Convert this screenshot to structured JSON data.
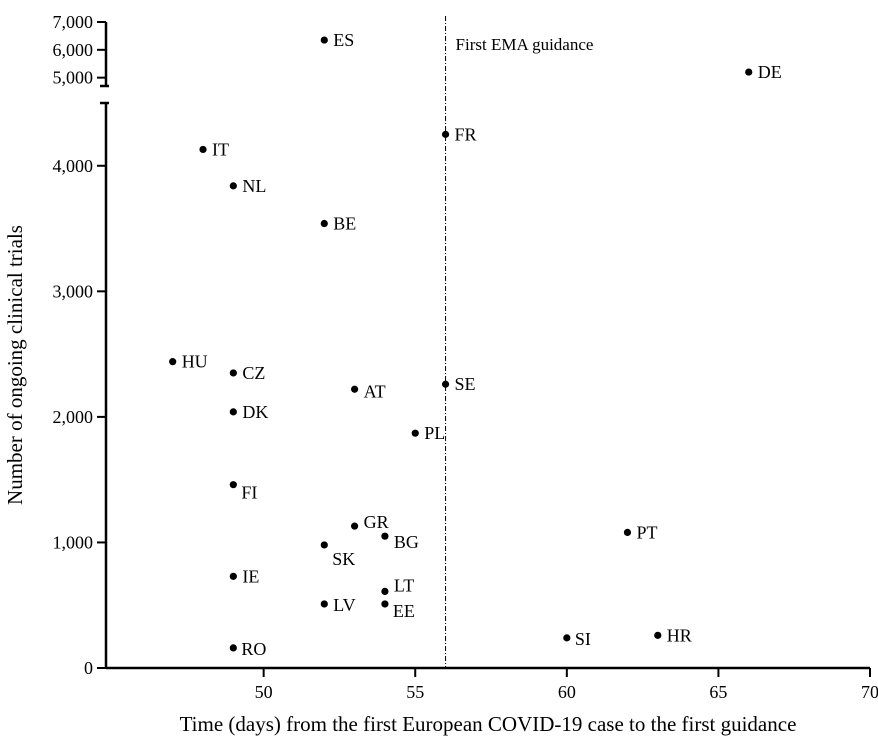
{
  "chart_data": {
    "type": "scatter",
    "xlabel": "Time (days) from the first European COVID-19 case to the first guidance",
    "ylabel": "Number of ongoing clinical trials",
    "xlim": [
      44.8,
      70
    ],
    "x_ticks": [
      50,
      55,
      60,
      65,
      70
    ],
    "x_tick_labels": [
      "50",
      "55",
      "60",
      "65",
      "70"
    ],
    "y_scale": "broken",
    "y_lower_range": [
      0,
      4500
    ],
    "y_lower_ticks": [
      0,
      1000,
      2000,
      3000,
      4000
    ],
    "y_lower_tick_labels": [
      "0",
      "1,000",
      "2,000",
      "3,000",
      "4,000"
    ],
    "y_upper_range": [
      4700,
      7000
    ],
    "y_upper_ticks": [
      5000,
      6000,
      7000
    ],
    "y_upper_tick_labels": [
      "5,000",
      "6,000",
      "7,000"
    ],
    "reference_line": {
      "x": 56,
      "label": "First EMA guidance"
    },
    "points": [
      {
        "label": "ES",
        "x": 52,
        "y": 6350
      },
      {
        "label": "DE",
        "x": 66,
        "y": 5200
      },
      {
        "label": "FR",
        "x": 56,
        "y": 4250
      },
      {
        "label": "IT",
        "x": 48,
        "y": 4130
      },
      {
        "label": "NL",
        "x": 49,
        "y": 3840
      },
      {
        "label": "BE",
        "x": 52,
        "y": 3540
      },
      {
        "label": "HU",
        "x": 47,
        "y": 2440
      },
      {
        "label": "CZ",
        "x": 49,
        "y": 2350
      },
      {
        "label": "SE",
        "x": 56,
        "y": 2260
      },
      {
        "label": "AT",
        "x": 53,
        "y": 2220
      },
      {
        "label": "DK",
        "x": 49,
        "y": 2040
      },
      {
        "label": "PL",
        "x": 55,
        "y": 1870
      },
      {
        "label": "FI",
        "x": 49,
        "y": 1460
      },
      {
        "label": "GR",
        "x": 53,
        "y": 1130
      },
      {
        "label": "PT",
        "x": 62,
        "y": 1080
      },
      {
        "label": "BG",
        "x": 54,
        "y": 1050
      },
      {
        "label": "SK",
        "x": 52,
        "y": 980
      },
      {
        "label": "IE",
        "x": 49,
        "y": 730
      },
      {
        "label": "LT",
        "x": 54,
        "y": 610
      },
      {
        "label": "LV",
        "x": 52,
        "y": 510
      },
      {
        "label": "EE",
        "x": 54,
        "y": 510
      },
      {
        "label": "HR",
        "x": 63,
        "y": 260
      },
      {
        "label": "SI",
        "x": 60,
        "y": 240
      },
      {
        "label": "RO",
        "x": 49,
        "y": 160
      }
    ]
  }
}
